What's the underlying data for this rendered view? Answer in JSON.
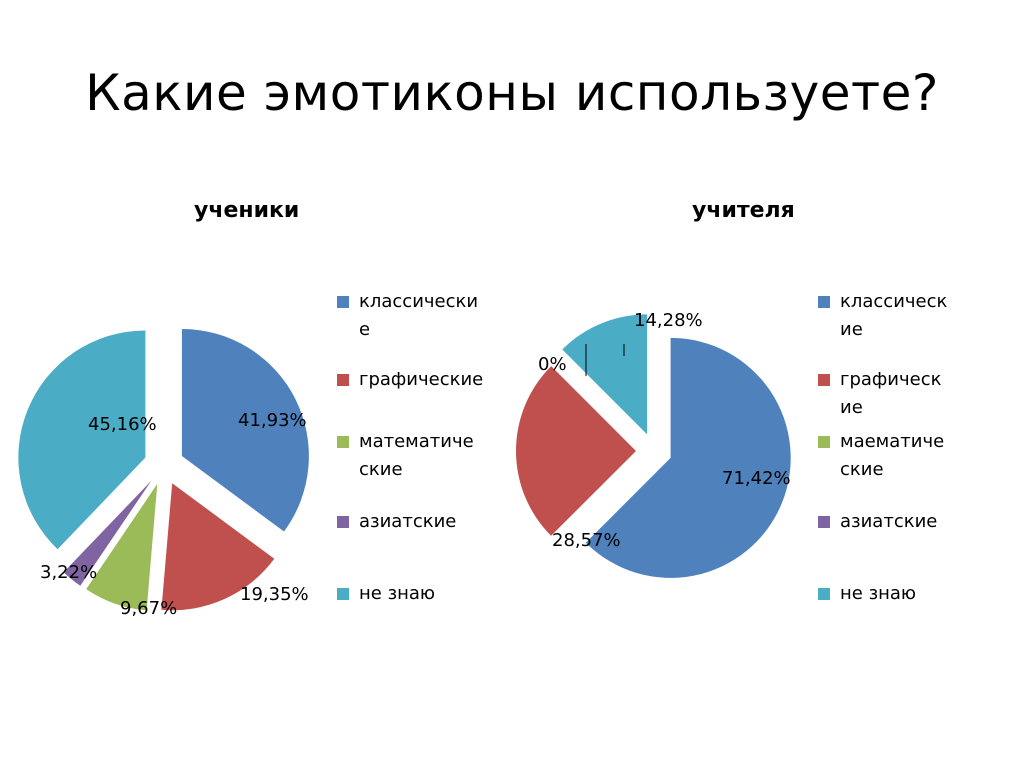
{
  "slide": {
    "title": "Какие эмотиконы используете?"
  },
  "chart_data": [
    {
      "type": "pie",
      "title": "ученики",
      "categories": [
        "классические",
        "графические",
        "математические",
        "азиатские",
        "не знаю"
      ],
      "values": [
        41.93,
        19.35,
        9.67,
        3.22,
        45.16
      ],
      "labels": [
        "41,93%",
        "19,35%",
        "9,67%",
        "3,22%",
        "45,16%"
      ],
      "legend": [
        "классически\nе",
        "графические",
        "математиче\nские",
        "азиатские",
        "не знаю"
      ],
      "exploded": true,
      "legend_position": "right"
    },
    {
      "type": "pie",
      "title": "учителя",
      "categories": [
        "классические",
        "графические",
        "маематические",
        "азиатские",
        "не знаю"
      ],
      "values": [
        71.42,
        28.57,
        0,
        0,
        14.28
      ],
      "labels": [
        "71,42%",
        "28,57%",
        "0%",
        "0%",
        "14,28%"
      ],
      "legend": [
        "классическ\nие",
        "графическ\nие",
        "маематиче\nские",
        "азиатские",
        "не знаю"
      ],
      "exploded": true,
      "legend_position": "right"
    }
  ],
  "colors": [
    "#4F81BD",
    "#C0504D",
    "#9BBB59",
    "#8064A2",
    "#4BACC6"
  ]
}
